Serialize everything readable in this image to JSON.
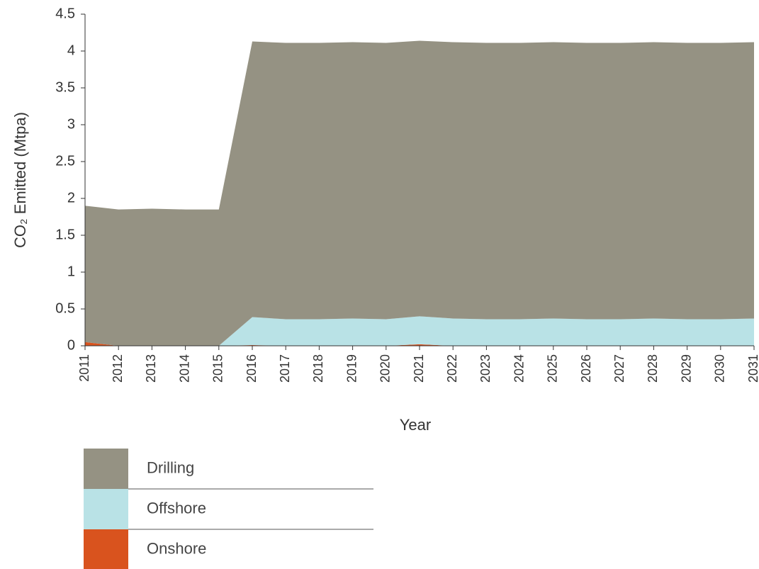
{
  "chart_data": {
    "type": "stacked_area",
    "y_label": "CO₂ Emitted (Mtpa)",
    "x_label": "Year",
    "categories": [
      "2011",
      "2012",
      "2013",
      "2014",
      "2015",
      "2016",
      "2017",
      "2018",
      "2019",
      "2020",
      "2021",
      "2022",
      "2023",
      "2024",
      "2025",
      "2026",
      "2027",
      "2028",
      "2029",
      "2030",
      "2031"
    ],
    "series": [
      {
        "name": "Drilling",
        "color": "#959283",
        "values": [
          1.85,
          1.85,
          1.86,
          1.85,
          1.85,
          3.74,
          3.75,
          3.75,
          3.75,
          3.75,
          3.74,
          3.75,
          3.75,
          3.75,
          3.75,
          3.75,
          3.75,
          3.75,
          3.75,
          3.75,
          3.75
        ]
      },
      {
        "name": "Offshore",
        "color": "#b9e2e6",
        "values": [
          0,
          0,
          0,
          0,
          0,
          0.38,
          0.36,
          0.36,
          0.37,
          0.36,
          0.38,
          0.37,
          0.36,
          0.36,
          0.37,
          0.36,
          0.36,
          0.37,
          0.36,
          0.36,
          0.37
        ]
      },
      {
        "name": "Onshore",
        "color": "#d9531e",
        "values": [
          0.05,
          0,
          0,
          0,
          0,
          0.01,
          0,
          0,
          0,
          0,
          0.02,
          0,
          0,
          0,
          0,
          0,
          0,
          0,
          0,
          0,
          0
        ]
      }
    ],
    "ylim": [
      0,
      4.5
    ],
    "yticks": [
      0,
      0.5,
      1,
      1.5,
      2,
      2.5,
      3,
      3.5,
      4,
      4.5
    ],
    "grid": false
  }
}
